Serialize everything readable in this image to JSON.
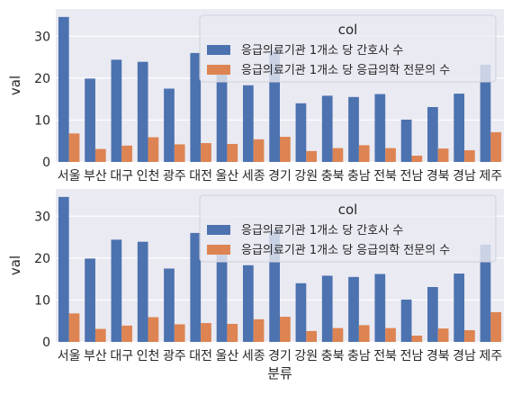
{
  "chart_data": [
    {
      "type": "bar",
      "categories": [
        "서울",
        "부산",
        "대구",
        "인천",
        "광주",
        "대전",
        "울산",
        "세종",
        "경기",
        "강원",
        "충북",
        "충남",
        "전북",
        "전남",
        "경북",
        "경남",
        "제주"
      ],
      "series": [
        {
          "name": "응급의료기관 1개소 당 간호사 수",
          "values": [
            34.6,
            19.9,
            24.4,
            23.9,
            17.5,
            26.0,
            21.6,
            18.3,
            26.5,
            14.0,
            15.8,
            15.5,
            16.2,
            10.1,
            13.1,
            16.3,
            23.2
          ]
        },
        {
          "name": "응급의료기관 1개소 당 응급의학 전문의 수",
          "values": [
            6.8,
            3.1,
            3.9,
            5.9,
            4.2,
            4.5,
            4.3,
            5.4,
            6.0,
            2.6,
            3.3,
            4.0,
            3.3,
            1.5,
            3.2,
            2.8,
            7.1
          ]
        }
      ],
      "xlabel": "",
      "ylabel": "val",
      "ylim": [
        0,
        36.5
      ],
      "yticks": [
        0,
        10,
        20,
        30
      ],
      "legend_title": "col",
      "legend_position": "upper-right",
      "grid": true,
      "colors": [
        "#4c72b0",
        "#dd8452"
      ]
    },
    {
      "type": "bar",
      "categories": [
        "서울",
        "부산",
        "대구",
        "인천",
        "광주",
        "대전",
        "울산",
        "세종",
        "경기",
        "강원",
        "충북",
        "충남",
        "전북",
        "전남",
        "경북",
        "경남",
        "제주"
      ],
      "series": [
        {
          "name": "응급의료기관 1개소 당 간호사 수",
          "values": [
            34.6,
            19.9,
            24.4,
            23.9,
            17.5,
            26.0,
            21.6,
            18.3,
            26.5,
            14.0,
            15.8,
            15.5,
            16.2,
            10.1,
            13.1,
            16.3,
            23.2
          ]
        },
        {
          "name": "응급의료기관 1개소 당 응급의학 전문의 수",
          "values": [
            6.8,
            3.1,
            3.9,
            5.9,
            4.2,
            4.5,
            4.3,
            5.4,
            6.0,
            2.6,
            3.3,
            4.0,
            3.3,
            1.5,
            3.2,
            2.8,
            7.1
          ]
        }
      ],
      "xlabel": "분류",
      "ylabel": "val",
      "ylim": [
        0,
        36.5
      ],
      "yticks": [
        0,
        10,
        20,
        30
      ],
      "legend_title": "col",
      "legend_position": "upper-right",
      "grid": true,
      "colors": [
        "#4c72b0",
        "#dd8452"
      ]
    }
  ]
}
